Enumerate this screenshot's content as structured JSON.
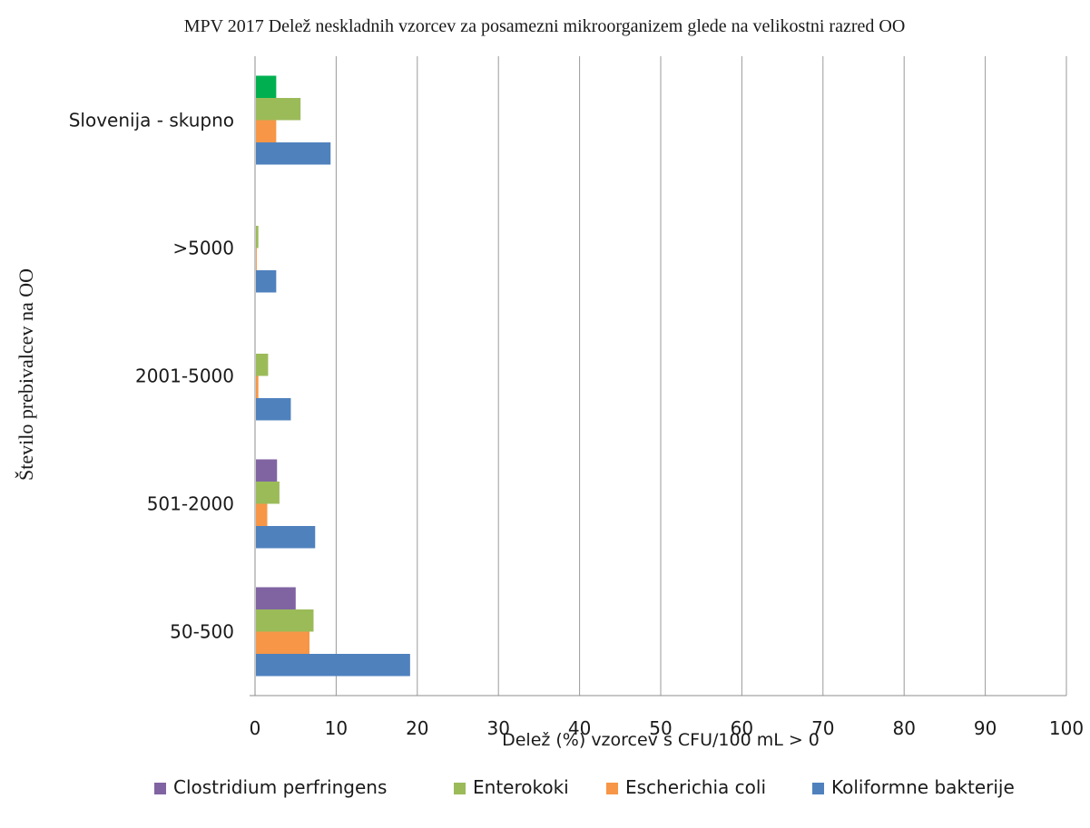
{
  "chart_data": {
    "type": "bar",
    "orientation": "horizontal",
    "title": "MPV 2017 Delež neskladnih vzorcev  za posamezni mikroorganizem glede na velikostni razred OO",
    "xlabel": "Delež (%) vzorcev  s CFU/100 mL > 0",
    "ylabel": "Število prebivalcev  na OO",
    "xlim": [
      0,
      100
    ],
    "xticks": [
      "0",
      "10",
      "20",
      "30",
      "40",
      "50",
      "60",
      "70",
      "80",
      "90",
      "100"
    ],
    "grid": "vertical",
    "legend_position": "bottom",
    "categories": [
      "Slovenija - skupno",
      ">5000",
      "2001-5000",
      "501-2000",
      "50-500"
    ],
    "series": [
      {
        "name": "Clostridium perfringens",
        "color": "#8064a2",
        "values": [
          2.5,
          0,
          0,
          2.6,
          4.9
        ]
      },
      {
        "name": "Enterokoki",
        "color": "#9bbb59",
        "values": [
          5.5,
          0.3,
          1.5,
          2.9,
          7.1
        ]
      },
      {
        "name": "Escherichia coli",
        "color": "#f79646",
        "values": [
          2.5,
          0.1,
          0.3,
          1.4,
          6.6
        ]
      },
      {
        "name": "Koliformne bakterije",
        "color": "#4f81bd",
        "values": [
          9.2,
          2.5,
          4.3,
          7.3,
          19.0
        ]
      }
    ],
    "highlight": {
      "category": "Slovenija - skupno",
      "series": "Clostridium perfringens",
      "color": "#00b050"
    }
  }
}
